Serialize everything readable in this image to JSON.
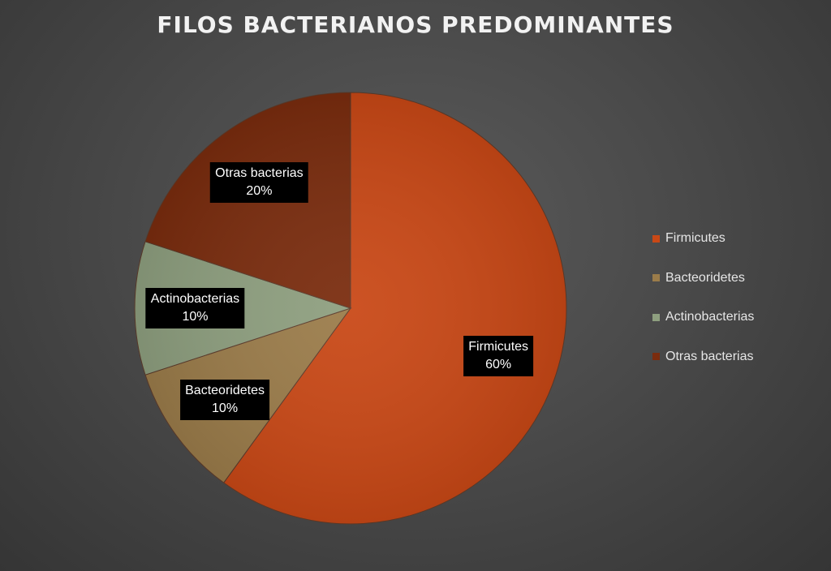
{
  "chart_data": {
    "type": "pie",
    "title": "FILOS BACTERIANOS PREDOMINANTES",
    "categories": [
      "Firmicutes",
      "Bacteoridetes",
      "Actinobacterias",
      "Otras bacterias"
    ],
    "values": [
      60,
      10,
      10,
      20
    ],
    "value_labels": [
      "60%",
      "10%",
      "10%",
      "20%"
    ],
    "colors": [
      "#c94816",
      "#9b7c4a",
      "#8e9f7f",
      "#7a2c0e"
    ],
    "legend_position": "right",
    "start_angle": "12 o'clock",
    "direction": "clockwise"
  }
}
